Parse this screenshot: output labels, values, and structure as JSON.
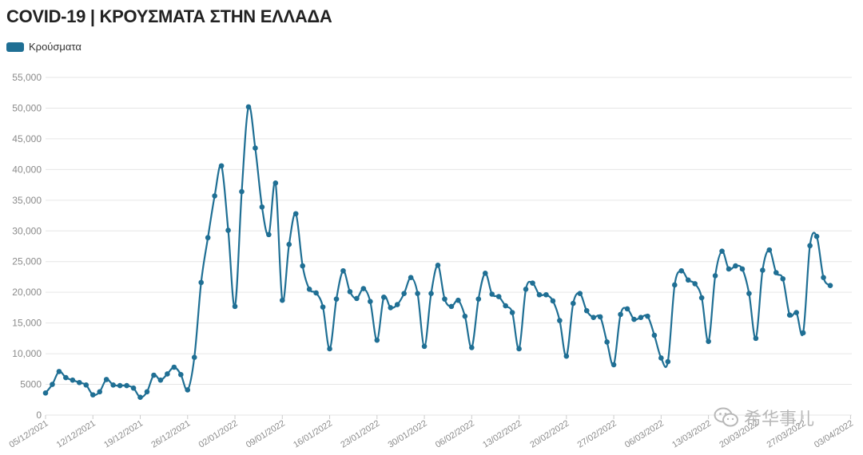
{
  "colors": {
    "series": "#1f6f94",
    "grid": "#e6e6e6",
    "tick": "#8a8a8a"
  },
  "watermark": {
    "text": "希华事儿",
    "icon": "wechat-icon"
  },
  "chart_data": {
    "type": "line",
    "title": "COVID-19 | ΚΡΟΥΣΜΑΤΑ ΣΤΗΝ ΕΛΛΑΔΑ",
    "legend": "top-left",
    "grid": true,
    "ylim": [
      0,
      55000
    ],
    "yticks": [
      0,
      5000,
      10000,
      15000,
      20000,
      25000,
      30000,
      35000,
      40000,
      45000,
      50000,
      55000
    ],
    "ytick_labels": [
      "0",
      "5000",
      "10,000",
      "15,000",
      "20,000",
      "25,000",
      "30,000",
      "35,000",
      "40,000",
      "45,000",
      "50,000",
      "55,000"
    ],
    "xtick_labels": [
      "05/12/2021",
      "12/12/2021",
      "19/12/2021",
      "26/12/2021",
      "02/01/2022",
      "09/01/2022",
      "16/01/2022",
      "23/01/2022",
      "30/01/2022",
      "06/02/2022",
      "13/02/2022",
      "20/02/2022",
      "27/02/2022",
      "06/03/2022",
      "13/03/2022",
      "20/03/2022",
      "27/03/2022",
      "03/04/2022"
    ],
    "series": [
      {
        "name": "Κρούσματα",
        "values": [
          3600,
          5000,
          7100,
          6100,
          5700,
          5300,
          4900,
          3300,
          3800,
          5800,
          4900,
          4800,
          4800,
          4400,
          2900,
          3800,
          6500,
          5700,
          6700,
          7800,
          6600,
          4100,
          9400,
          21600,
          28900,
          35700,
          40600,
          30100,
          17700,
          36400,
          50200,
          43500,
          33900,
          29400,
          37800,
          18700,
          27800,
          32800,
          24300,
          20500,
          19900,
          17600,
          10800,
          18900,
          23500,
          20100,
          19000,
          20600,
          18500,
          12200,
          19200,
          17500,
          18000,
          19800,
          22400,
          19800,
          11200,
          19800,
          24400,
          18900,
          17700,
          18700,
          16100,
          11000,
          18900,
          23100,
          19700,
          19300,
          17800,
          16700,
          10800,
          20500,
          21500,
          19600,
          19600,
          18600,
          15400,
          9600,
          18200,
          19800,
          17000,
          15900,
          16000,
          11900,
          8200,
          16400,
          17300,
          15600,
          15900,
          16100,
          13000,
          9300,
          8700,
          21200,
          23500,
          22000,
          21400,
          19100,
          12000,
          22700,
          26700,
          23800,
          24300,
          23800,
          19800,
          12500,
          23600,
          26900,
          23200,
          22200,
          16300,
          16700,
          13400,
          27600,
          29100,
          22400,
          21100
        ]
      }
    ]
  }
}
